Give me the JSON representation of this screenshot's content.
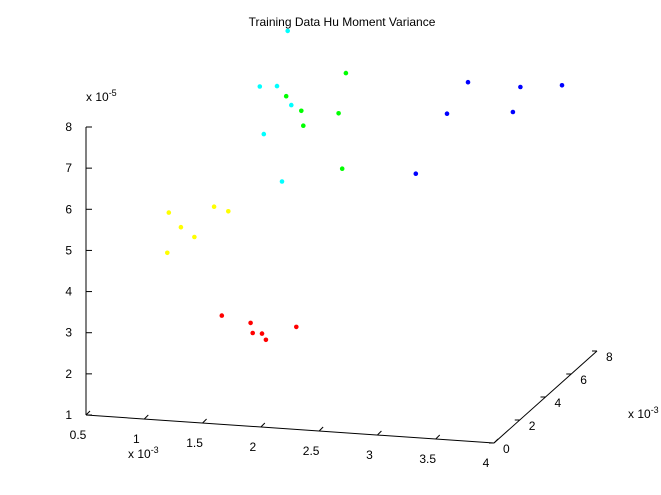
{
  "chart_data": {
    "type": "scatter",
    "title": "Training Data Hu Moment Variance",
    "xlabel": "",
    "ylabel": "",
    "zlabel": "",
    "x_multiplier": "x 10",
    "x_exponent": "-3",
    "y_multiplier": "x 10",
    "y_exponent": "-3",
    "z_multiplier": "x 10",
    "z_exponent": "-5",
    "xlim": [
      0.5,
      4
    ],
    "ylim": [
      0,
      8
    ],
    "zlim": [
      1,
      8
    ],
    "x_ticks": [
      "0.5",
      "1",
      "1.5",
      "2",
      "2.5",
      "3",
      "3.5",
      "4"
    ],
    "y_ticks": [
      "0",
      "2",
      "4",
      "6",
      "8"
    ],
    "z_ticks": [
      "1",
      "2",
      "3",
      "4",
      "5",
      "6",
      "7",
      "8"
    ],
    "grid": false,
    "series": [
      {
        "color": "#ff0000",
        "points": [
          [
            1.4,
            2.4,
            2.92
          ],
          [
            1.68,
            2.1,
            2.88
          ],
          [
            1.72,
            1.9,
            2.7
          ],
          [
            1.8,
            1.9,
            2.7
          ],
          [
            1.85,
            1.75,
            2.6
          ],
          [
            2.05,
            2.3,
            2.8
          ]
        ]
      },
      {
        "color": "#ffff00",
        "points": [
          [
            0.94,
            2.45,
            5.32
          ],
          [
            1.06,
            2.3,
            5.03
          ],
          [
            1.17,
            2.35,
            4.8
          ],
          [
            0.96,
            2.15,
            4.43
          ],
          [
            1.35,
            2.25,
            5.6
          ],
          [
            1.45,
            2.45,
            5.45
          ]
        ]
      },
      {
        "color": "#00ffff",
        "points": [
          [
            1.91,
            2.9,
            9.8
          ],
          [
            1.56,
            3.9,
            8.1
          ],
          [
            1.73,
            3.7,
            8.2
          ],
          [
            1.83,
            3.9,
            7.7
          ],
          [
            1.65,
            3.4,
            7.1
          ],
          [
            1.85,
            3.0,
            6.1
          ]
        ]
      },
      {
        "color": "#00ff00",
        "points": [
          [
            1.82,
            3.6,
            8.0
          ],
          [
            1.96,
            3.5,
            7.7
          ],
          [
            2.0,
            3.3,
            7.4
          ],
          [
            2.28,
            3.5,
            7.7
          ],
          [
            2.31,
            3.8,
            8.6
          ],
          [
            2.4,
            2.7,
            6.6
          ]
        ]
      },
      {
        "color": "#0000ff",
        "points": [
          [
            2.7,
            5.7,
            5.7
          ],
          [
            2.89,
            6.4,
            7.0
          ],
          [
            3.07,
            6.4,
            7.8
          ],
          [
            3.4,
            6.9,
            7.0
          ],
          [
            3.42,
            7.3,
            7.5
          ],
          [
            3.7,
            8.0,
            7.4
          ]
        ]
      }
    ]
  }
}
